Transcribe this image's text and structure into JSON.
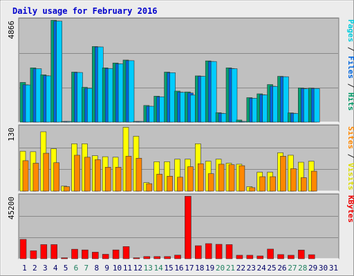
{
  "chart_data": [
    {
      "type": "bar",
      "title": "Daily usage for February 2016",
      "ylabel_parts": [
        {
          "text": "Pages",
          "color": "#00ccdd"
        },
        {
          "text": " / ",
          "color": "#222222"
        },
        {
          "text": "Files",
          "color": "#0066dd"
        },
        {
          "text": " / ",
          "color": "#222222"
        },
        {
          "text": "Hits",
          "color": "#009966"
        }
      ],
      "ymax_label": "4866",
      "ylim": [
        0,
        4866
      ],
      "categories": [
        "1",
        "2",
        "3",
        "4",
        "5",
        "6",
        "7",
        "8",
        "9",
        "10",
        "11",
        "12",
        "13",
        "14",
        "15",
        "16",
        "17",
        "18",
        "19",
        "20",
        "21",
        "22",
        "23",
        "24",
        "25",
        "26",
        "27",
        "28",
        "29",
        "30",
        "31"
      ],
      "series": [
        {
          "name": "Hits",
          "color": "#00a070",
          "values": [
            1880,
            2570,
            2240,
            4820,
            20,
            2370,
            1650,
            3580,
            2570,
            2800,
            2940,
            20,
            790,
            1230,
            2370,
            1470,
            1430,
            2190,
            2900,
            450,
            2570,
            100,
            1160,
            1340,
            1780,
            2170,
            440,
            1620,
            1610,
            null,
            null
          ]
        },
        {
          "name": "Files",
          "color": "#0066dd",
          "values": [
            1770,
            2520,
            2200,
            4780,
            0,
            2350,
            1600,
            3560,
            2540,
            2760,
            2910,
            0,
            750,
            1200,
            2340,
            1420,
            1380,
            2170,
            2870,
            420,
            2540,
            0,
            1130,
            1300,
            1700,
            2150,
            420,
            1590,
            1590,
            null,
            null
          ]
        },
        {
          "name": "Pages",
          "color": "#00ccff",
          "values": [
            1760,
            2530,
            2190,
            4780,
            0,
            2350,
            1600,
            3560,
            2540,
            2760,
            2910,
            0,
            750,
            1200,
            2340,
            1410,
            1280,
            2170,
            2870,
            410,
            2530,
            0,
            1130,
            1290,
            1690,
            2150,
            410,
            1580,
            1590,
            null,
            null
          ]
        }
      ]
    },
    {
      "type": "bar",
      "ylabel_parts": [
        {
          "text": "Sites",
          "color": "#ff8800"
        },
        {
          "text": " / ",
          "color": "#222222"
        },
        {
          "text": "Visits",
          "color": "#dddd00"
        }
      ],
      "ymax_label": "130",
      "ylim": [
        0,
        130
      ],
      "categories": [
        "1",
        "2",
        "3",
        "4",
        "5",
        "6",
        "7",
        "8",
        "9",
        "10",
        "11",
        "12",
        "13",
        "14",
        "15",
        "16",
        "17",
        "18",
        "19",
        "20",
        "21",
        "22",
        "23",
        "24",
        "25",
        "26",
        "27",
        "28",
        "29",
        "30",
        "31"
      ],
      "series": [
        {
          "name": "Visits",
          "color": "#ffff00",
          "values": [
            80,
            79,
            119,
            85,
            10,
            95,
            95,
            71,
            69,
            68,
            128,
            110,
            17,
            59,
            59,
            64,
            64,
            95,
            60,
            64,
            56,
            54,
            9,
            38,
            38,
            77,
            72,
            58,
            60,
            null,
            null
          ]
        },
        {
          "name": "Sites",
          "color": "#ff8800",
          "values": [
            61,
            56,
            76,
            57,
            9,
            72,
            68,
            63,
            48,
            48,
            70,
            66,
            15,
            34,
            30,
            28,
            49,
            55,
            35,
            54,
            53,
            51,
            7,
            29,
            29,
            70,
            45,
            27,
            40,
            null,
            null
          ]
        }
      ]
    },
    {
      "type": "bar",
      "ylabel_parts": [
        {
          "text": "KBytes",
          "color": "#ee0000"
        }
      ],
      "ymax_label": "45200",
      "ylim": [
        0,
        45200
      ],
      "categories": [
        "1",
        "2",
        "3",
        "4",
        "5",
        "6",
        "7",
        "8",
        "9",
        "10",
        "11",
        "12",
        "13",
        "14",
        "15",
        "16",
        "17",
        "18",
        "19",
        "20",
        "21",
        "22",
        "23",
        "24",
        "25",
        "26",
        "27",
        "28",
        "29",
        "30",
        "31"
      ],
      "weekend_color": "#208060",
      "weekday_color": "#000066",
      "weekend_days": [
        "6",
        "7",
        "13",
        "14",
        "20",
        "21",
        "27",
        "28"
      ],
      "series": [
        {
          "name": "KBytes",
          "color": "#ff0000",
          "values": [
            13800,
            5700,
            10100,
            10100,
            700,
            6800,
            6300,
            4700,
            3200,
            6300,
            8700,
            700,
            1600,
            1600,
            1600,
            2600,
            44500,
            9300,
            10800,
            10300,
            10100,
            2500,
            2500,
            2000,
            6900,
            3000,
            2500,
            6200,
            2900,
            null,
            null
          ]
        }
      ]
    }
  ]
}
